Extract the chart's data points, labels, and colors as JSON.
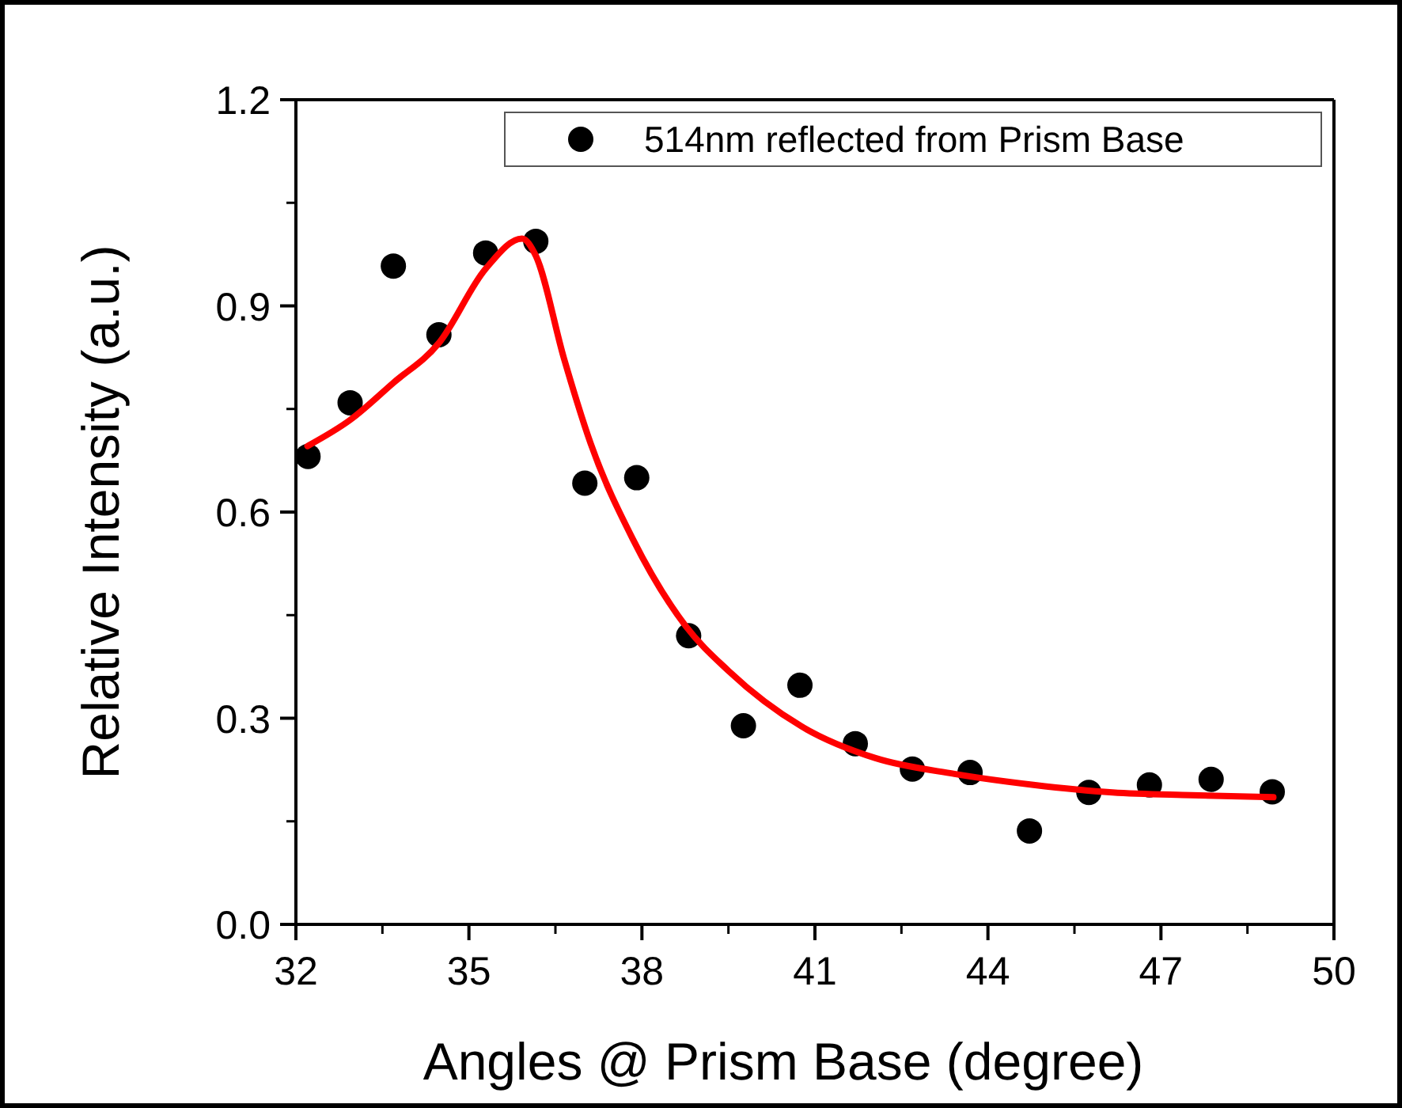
{
  "chart_data": {
    "type": "scatter",
    "xlabel": "Angles @ Prism Base (degree)",
    "ylabel": "Relative Intensity (a.u.)",
    "xlim": [
      32,
      50
    ],
    "xticks": [
      32,
      35,
      38,
      41,
      44,
      47,
      50
    ],
    "ylim": [
      0,
      1.2
    ],
    "yticks": [
      {
        "value": 0,
        "label": "0.0"
      },
      0.3,
      0.6,
      0.9,
      1.2
    ],
    "legend": "top right",
    "series": [
      {
        "name": "514nm reflected from Prism Base",
        "marker": "circle",
        "color": "#000000",
        "x": [
          32.21,
          32.94,
          33.69,
          34.48,
          35.29,
          36.16,
          37.01,
          37.91,
          38.81,
          39.76,
          40.74,
          41.7,
          42.69,
          43.69,
          44.72,
          45.75,
          46.8,
          47.87,
          48.93
        ],
        "values": [
          0.681,
          0.759,
          0.958,
          0.858,
          0.977,
          0.994,
          0.642,
          0.65,
          0.42,
          0.289,
          0.348,
          0.263,
          0.226,
          0.221,
          0.136,
          0.192,
          0.203,
          0.211,
          0.193
        ]
      },
      {
        "type": "line",
        "color": "#ff0000",
        "line_style": "solid",
        "x": [
          32.2,
          32.94,
          33.69,
          34.48,
          35.29,
          35.92,
          36.16,
          36.65,
          37.11,
          37.84,
          38.76,
          39.5,
          40.77,
          42.05,
          43.42,
          44.79,
          46.16,
          47.53,
          48.95
        ],
        "values": [
          0.696,
          0.734,
          0.788,
          0.846,
          0.954,
          0.998,
          0.973,
          0.823,
          0.7,
          0.561,
          0.434,
          0.369,
          0.288,
          0.242,
          0.219,
          0.203,
          0.192,
          0.188,
          0.185
        ]
      }
    ]
  }
}
